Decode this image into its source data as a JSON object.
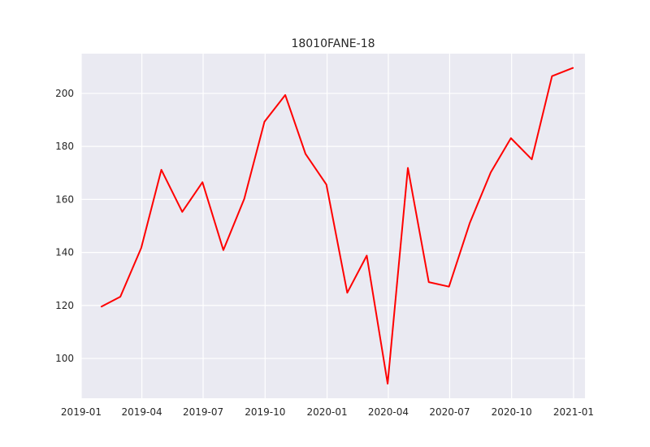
{
  "chart_data": {
    "type": "line",
    "title": "18010FANE-18",
    "xlabel": "",
    "ylabel": "",
    "grid": true,
    "legend": "none",
    "colors": {
      "background": "#eaeaf2",
      "grid": "#ffffff",
      "series": "#ff0000"
    },
    "xlim": [
      "2019-01-01",
      "2021-01-18"
    ],
    "ylim": [
      85,
      215
    ],
    "x_ticks": [
      {
        "date": "2019-01-01",
        "label": "2019-01"
      },
      {
        "date": "2019-04-01",
        "label": "2019-04"
      },
      {
        "date": "2019-07-01",
        "label": "2019-07"
      },
      {
        "date": "2019-10-01",
        "label": "2019-10"
      },
      {
        "date": "2020-01-01",
        "label": "2020-01"
      },
      {
        "date": "2020-04-01",
        "label": "2020-04"
      },
      {
        "date": "2020-07-01",
        "label": "2020-07"
      },
      {
        "date": "2020-10-01",
        "label": "2020-10"
      },
      {
        "date": "2021-01-01",
        "label": "2021-01"
      }
    ],
    "y_ticks": [
      100,
      120,
      140,
      160,
      180,
      200
    ],
    "series": [
      {
        "x": [
          "2019-01-31",
          "2019-02-28",
          "2019-03-31",
          "2019-04-30",
          "2019-05-31",
          "2019-06-30",
          "2019-07-31",
          "2019-08-31",
          "2019-09-30",
          "2019-10-31",
          "2019-11-30",
          "2019-12-31",
          "2020-01-31",
          "2020-02-29",
          "2020-03-31",
          "2020-04-30",
          "2020-05-31",
          "2020-06-30",
          "2020-07-31",
          "2020-08-31",
          "2020-09-30",
          "2020-10-31",
          "2020-11-30",
          "2020-12-31"
        ],
        "values": [
          119.6,
          123.3,
          141.7,
          171.2,
          155.3,
          166.5,
          140.9,
          160.2,
          189.3,
          199.4,
          177.2,
          165.6,
          124.8,
          138.8,
          90.5,
          171.9,
          128.8,
          127.1,
          151.2,
          170.2,
          183.1,
          175.1,
          206.5,
          209.6
        ]
      }
    ]
  }
}
